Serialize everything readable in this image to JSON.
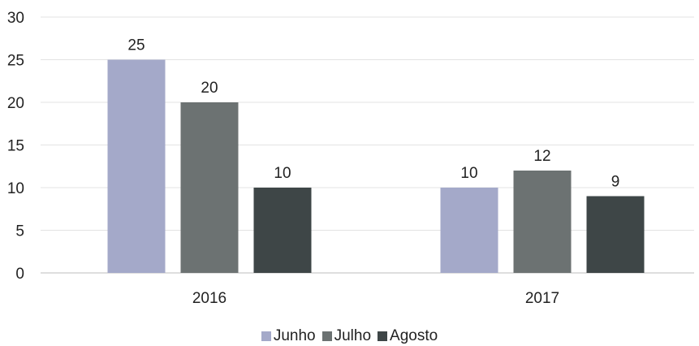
{
  "chart_data": {
    "type": "bar",
    "categories": [
      "2016",
      "2017"
    ],
    "series": [
      {
        "name": "Junho",
        "values": [
          25,
          10
        ],
        "color": "#a4a9c9"
      },
      {
        "name": "Julho",
        "values": [
          20,
          12
        ],
        "color": "#6c7272"
      },
      {
        "name": "Agosto",
        "values": [
          10,
          9
        ],
        "color": "#3e4647"
      }
    ],
    "ylim": [
      0,
      30
    ],
    "yticks": [
      "0",
      "5",
      "10",
      "15",
      "20",
      "25",
      "30"
    ],
    "grid": true,
    "legend_position": "bottom",
    "data_labels": true
  }
}
